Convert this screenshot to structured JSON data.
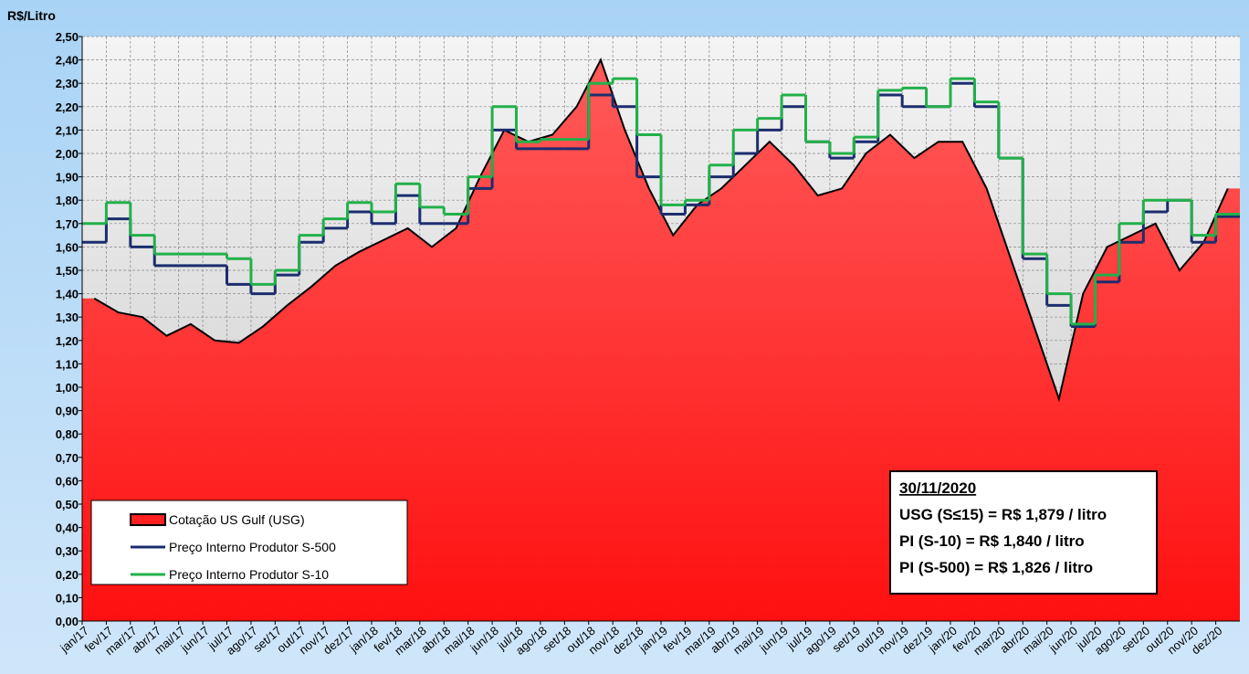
{
  "chart_data": {
    "type": "line",
    "y_axis_label": "R$/Litro",
    "categories": [
      "jan/17",
      "fev/17",
      "mar/17",
      "abr/17",
      "mai/17",
      "jun/17",
      "jul/17",
      "ago/17",
      "set/17",
      "out/17",
      "nov/17",
      "dez/17",
      "jan/18",
      "fev/18",
      "mar/18",
      "abr/18",
      "mai/18",
      "jun/18",
      "jul/18",
      "ago/18",
      "set/18",
      "out/18",
      "nov/18",
      "dez/18",
      "jan/19",
      "fev/19",
      "mar/19",
      "abr/19",
      "mai/19",
      "jun/19",
      "jul/19",
      "ago/19",
      "set/19",
      "out/19",
      "nov/19",
      "dez/19",
      "jan/20",
      "fev/20",
      "mar/20",
      "abr/20",
      "mai/20",
      "jun/20",
      "jul/20",
      "ago/20",
      "set/20",
      "out/20",
      "nov/20",
      "dez/20"
    ],
    "series": [
      {
        "name": "Cotação US Gulf (USG)",
        "color": "#ff2020",
        "style": "area",
        "values": [
          1.38,
          1.32,
          1.3,
          1.22,
          1.27,
          1.2,
          1.19,
          1.26,
          1.35,
          1.43,
          1.52,
          1.58,
          1.63,
          1.68,
          1.6,
          1.68,
          1.9,
          2.1,
          2.05,
          2.08,
          2.2,
          2.4,
          2.1,
          1.85,
          1.65,
          1.78,
          1.85,
          1.95,
          2.05,
          1.95,
          1.82,
          1.85,
          2.0,
          2.08,
          1.98,
          2.05,
          2.05,
          1.85,
          1.55,
          1.25,
          0.95,
          1.4,
          1.6,
          1.65,
          1.7,
          1.5,
          1.62,
          1.85
        ]
      },
      {
        "name": "Preço Interno Produtor S-500",
        "color": "#1c2d6e",
        "style": "step",
        "values": [
          1.62,
          1.72,
          1.6,
          1.52,
          1.52,
          1.52,
          1.44,
          1.4,
          1.48,
          1.62,
          1.68,
          1.75,
          1.7,
          1.82,
          1.7,
          1.7,
          1.85,
          2.1,
          2.02,
          2.02,
          2.02,
          2.25,
          2.2,
          1.9,
          1.74,
          1.78,
          1.9,
          2.0,
          2.1,
          2.2,
          2.05,
          1.98,
          2.05,
          2.25,
          2.2,
          2.2,
          2.3,
          2.2,
          1.98,
          1.55,
          1.35,
          1.26,
          1.45,
          1.62,
          1.75,
          1.8,
          1.62,
          1.73
        ]
      },
      {
        "name": "Preço Interno Produtor S-10",
        "color": "#22b04a",
        "style": "step",
        "values": [
          1.7,
          1.79,
          1.65,
          1.57,
          1.57,
          1.57,
          1.55,
          1.44,
          1.5,
          1.65,
          1.72,
          1.79,
          1.75,
          1.87,
          1.77,
          1.74,
          1.9,
          2.2,
          2.05,
          2.06,
          2.06,
          2.3,
          2.32,
          2.08,
          1.78,
          1.8,
          1.95,
          2.1,
          2.15,
          2.25,
          2.05,
          2.0,
          2.07,
          2.27,
          2.28,
          2.2,
          2.32,
          2.22,
          1.98,
          1.57,
          1.4,
          1.27,
          1.48,
          1.7,
          1.8,
          1.8,
          1.65,
          1.74
        ]
      }
    ],
    "ylim": [
      0,
      2.5
    ],
    "yticks": [
      {
        "value": 0,
        "label": "0,00"
      },
      {
        "value": 0.1,
        "label": "0,10"
      },
      {
        "value": 0.2,
        "label": "0,20"
      },
      {
        "value": 0.3,
        "label": "0,30"
      },
      {
        "value": 0.4,
        "label": "0,40"
      },
      {
        "value": 0.5,
        "label": "0,50"
      },
      {
        "value": 0.6,
        "label": "0,60"
      },
      {
        "value": 0.7,
        "label": "0,70"
      },
      {
        "value": 0.8,
        "label": "0,80"
      },
      {
        "value": 0.9,
        "label": "0,90"
      },
      {
        "value": 1.0,
        "label": "1,00"
      },
      {
        "value": 1.1,
        "label": "1,10"
      },
      {
        "value": 1.2,
        "label": "1,20"
      },
      {
        "value": 1.3,
        "label": "1,30"
      },
      {
        "value": 1.4,
        "label": "1,40"
      },
      {
        "value": 1.5,
        "label": "1,50"
      },
      {
        "value": 1.6,
        "label": "1,60"
      },
      {
        "value": 1.7,
        "label": "1,70"
      },
      {
        "value": 1.8,
        "label": "1,80"
      },
      {
        "value": 1.9,
        "label": "1,90"
      },
      {
        "value": 2.0,
        "label": "2,00"
      },
      {
        "value": 2.1,
        "label": "2,10"
      },
      {
        "value": 2.2,
        "label": "2,20"
      },
      {
        "value": 2.3,
        "label": "2,30"
      },
      {
        "value": 2.4,
        "label": "2,40"
      },
      {
        "value": 2.5,
        "label": "2,50"
      }
    ],
    "grid": true,
    "legend": "bottom-left",
    "annotations": [
      "30/11/2020",
      "USG (S≤15) = R$ 1,879 / litro",
      "PI (S-10) = R$ 1,840 / litro",
      "PI (S-500) = R$ 1,826 / litro"
    ]
  }
}
